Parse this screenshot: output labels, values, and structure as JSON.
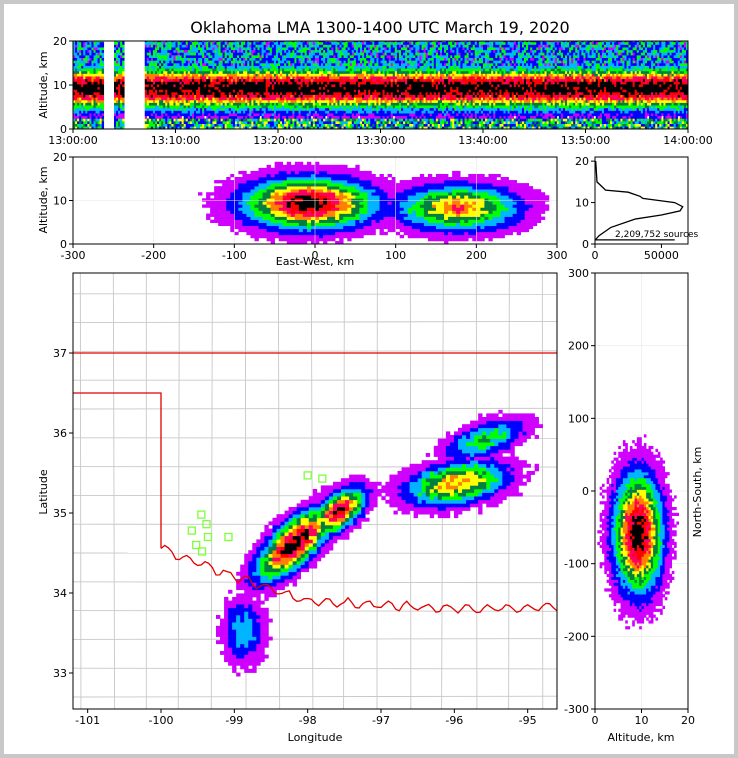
{
  "title": "Oklahoma LMA 1300-1400 UTC March 19, 2020",
  "colors": {
    "state_border": "#e00000",
    "county_lines": "#c8c8c8",
    "stations": "#7dff3a",
    "density_scale": [
      "#d000ff",
      "#0000ff",
      "#00b4ff",
      "#00ff00",
      "#008040",
      "#ffff00",
      "#ff8000",
      "#ff0060",
      "#ff0000",
      "#000000"
    ]
  },
  "chart_data": [
    {
      "id": "time-height",
      "type": "heatmap",
      "xlabel": "",
      "ylabel": "Altitude, km",
      "xlim": [
        "13:00:00",
        "14:00:00"
      ],
      "ylim": [
        0,
        20
      ],
      "xticks": [
        "13:00:00",
        "13:10:00",
        "13:20:00",
        "13:30:00",
        "13:40:00",
        "13:50:00",
        "14:00:00"
      ],
      "yticks": [
        0,
        10,
        20
      ],
      "data_gaps": [
        [
          "13:03:00",
          "13:04:00"
        ],
        [
          "13:05:00",
          "13:07:00"
        ]
      ],
      "peak_altitude_km": 9
    },
    {
      "id": "east-west-altitude",
      "type": "heatmap",
      "xlabel": "East-West, km",
      "ylabel": "Altitude, km",
      "xlim": [
        -300,
        300
      ],
      "ylim": [
        0,
        20
      ],
      "xticks": [
        -300,
        -200,
        -100,
        0,
        100,
        200,
        300
      ],
      "yticks": [
        0,
        10,
        20
      ]
    },
    {
      "id": "altitude-histogram",
      "type": "line",
      "xlim": [
        0,
        70000
      ],
      "ylim": [
        0,
        21
      ],
      "xticks": [
        0,
        50000
      ],
      "yticks": [
        0,
        10,
        20
      ],
      "annotation": "2,209,752 sources",
      "series": [
        {
          "x": [
            500,
            1500,
            8000,
            25000,
            34000,
            36000,
            48000,
            60000,
            66000,
            64000,
            50000,
            30000,
            12000,
            3000,
            800,
            200
          ],
          "y": [
            20,
            15,
            13,
            12.5,
            11.5,
            11,
            10.5,
            10,
            9,
            8,
            7,
            6,
            4,
            2,
            1.2,
            1
          ]
        }
      ]
    },
    {
      "id": "plan-view",
      "type": "heatmap",
      "xlabel": "Longitude",
      "ylabel": "Latitude",
      "xlim": [
        -101.2,
        -94.6
      ],
      "ylim": [
        32.55,
        38
      ],
      "xticks": [
        -101,
        -100,
        -99,
        -98,
        -97,
        -96,
        -95
      ],
      "yticks": [
        33,
        34,
        35,
        36,
        37
      ],
      "stations": [
        {
          "lon": -99.45,
          "lat": 34.98
        },
        {
          "lon": -99.38,
          "lat": 34.86
        },
        {
          "lon": -99.58,
          "lat": 34.78
        },
        {
          "lon": -99.36,
          "lat": 34.7
        },
        {
          "lon": -99.52,
          "lat": 34.6
        },
        {
          "lon": -99.44,
          "lat": 34.52
        },
        {
          "lon": -99.08,
          "lat": 34.7
        },
        {
          "lon": -98.0,
          "lat": 35.47
        },
        {
          "lon": -97.8,
          "lat": 35.43
        }
      ]
    },
    {
      "id": "altitude-north-south",
      "type": "heatmap",
      "xlabel": "Altitude, km",
      "ylabel": "North-South, km",
      "xlim": [
        0,
        20
      ],
      "ylim": [
        -300,
        300
      ],
      "xticks": [
        0,
        10,
        20
      ],
      "yticks": [
        -300,
        -200,
        -100,
        0,
        100,
        200,
        300
      ]
    }
  ]
}
